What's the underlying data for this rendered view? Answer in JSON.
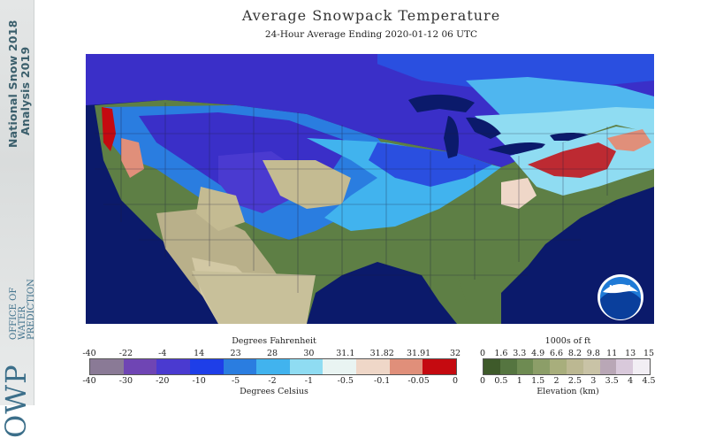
{
  "header": {
    "title": "Average Snowpack Temperature",
    "subtitle": "24-Hour Average Ending 2020-01-12 06 UTC"
  },
  "branding": {
    "program_line1": "National Snow 2018",
    "program_line2": "Analysis 2019",
    "office_word": "OWP",
    "office_full": "OFFICE OF\nWATER\nPREDICTION",
    "logo": "NOAA"
  },
  "temperature_legend": {
    "top_label": "Degrees Fahrenheit",
    "bottom_label": "Degrees Celsius",
    "fahrenheit_ticks": [
      "-40",
      "-22",
      "-4",
      "14",
      "23",
      "28",
      "30",
      "31.1",
      "31.82",
      "31.91",
      "32"
    ],
    "celsius_ticks": [
      "-40",
      "-30",
      "-20",
      "-10",
      "-5",
      "-2",
      "-1",
      "-0.5",
      "-0.1",
      "-0.05",
      "0"
    ],
    "colors": [
      "#8a7a96",
      "#6f45b4",
      "#4a3ad0",
      "#1e3ee8",
      "#2a7de0",
      "#41b3ee",
      "#8fdcf2",
      "#e9f4f2",
      "#efd7c8",
      "#e08f7a",
      "#c50a10"
    ]
  },
  "elevation_legend": {
    "top_label": "1000s of ft",
    "bottom_label": "Elevation (km)",
    "feet_ticks": [
      "0",
      "1.6",
      "3.3",
      "4.9",
      "6.6",
      "8.2",
      "9.8",
      "11",
      "13",
      "15"
    ],
    "km_ticks": [
      "0",
      "0.5",
      "1",
      "1.5",
      "2",
      "2.5",
      "3",
      "3.5",
      "4",
      "4.5"
    ],
    "colors": [
      "#3e5a2a",
      "#557540",
      "#6e8b52",
      "#8c9e68",
      "#a8ae7c",
      "#bcb892",
      "#c9c3a6",
      "#b9a7b6",
      "#d9c9db",
      "#f2eef4"
    ]
  }
}
